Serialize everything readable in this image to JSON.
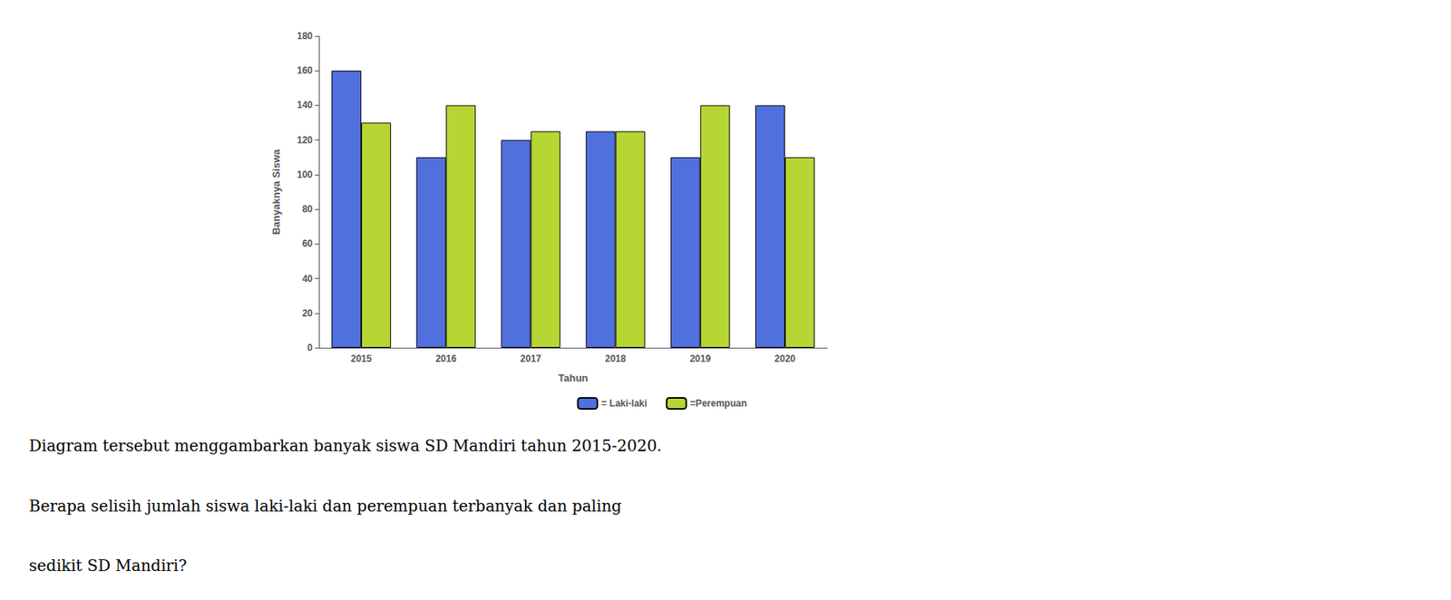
{
  "chart_data": {
    "type": "bar",
    "xlabel": "Tahun",
    "ylabel": "Banyaknya Siswa",
    "categories": [
      "2015",
      "2016",
      "2017",
      "2018",
      "2019",
      "2020"
    ],
    "series": [
      {
        "name": "= Laki-laki",
        "values": [
          160,
          110,
          120,
          125,
          110,
          140
        ]
      },
      {
        "name": "=Perempuan",
        "values": [
          130,
          140,
          125,
          125,
          140,
          110
        ]
      }
    ],
    "ylim": [
      0,
      180
    ],
    "yticks": [
      0,
      20,
      40,
      60,
      80,
      100,
      120,
      140,
      160,
      180
    ],
    "grid": false,
    "legend": "bottom",
    "annotations": [
      "Diagram tersebut menggambarkan banyak siswa SD Mandiri tahun 2015-2020.",
      "Berapa selisih jumlah siswa laki-laki dan perempuan terbanyak dan paling",
      "sedikit SD Mandiri?"
    ]
  }
}
